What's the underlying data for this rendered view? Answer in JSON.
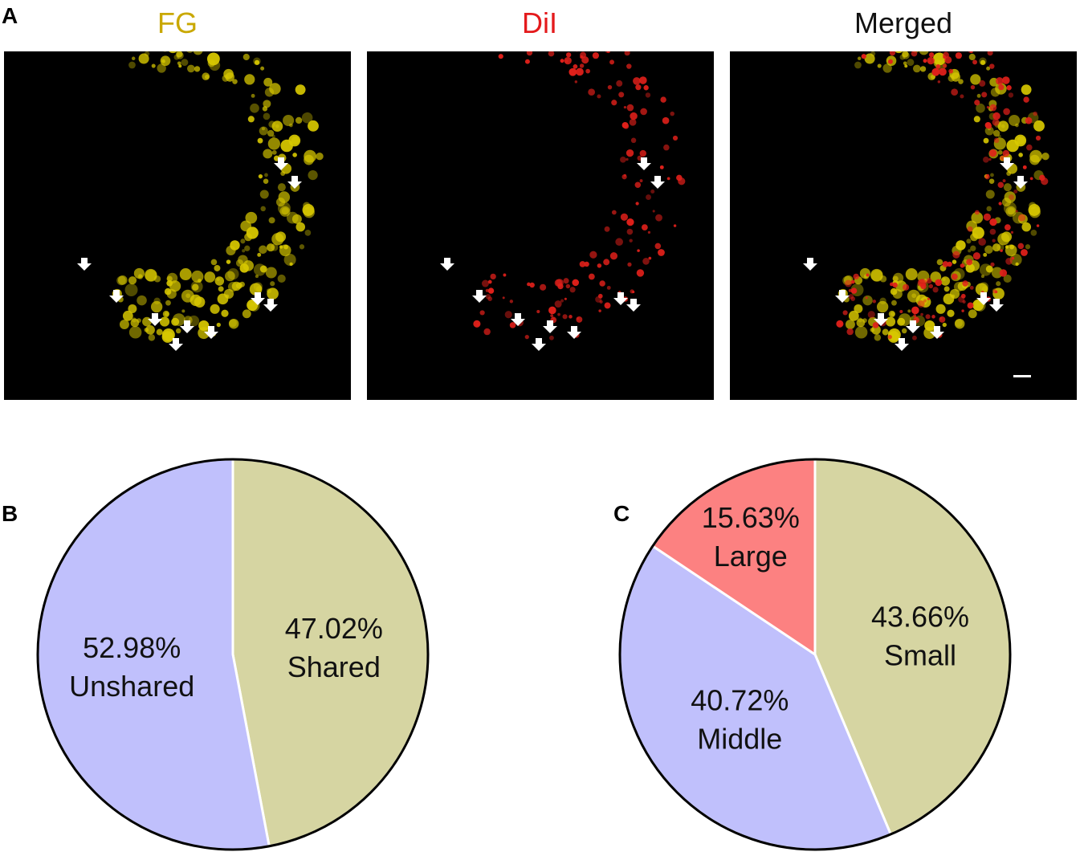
{
  "figure": {
    "panel_labels": {
      "a": "A",
      "b": "B",
      "c": "C"
    },
    "images": [
      {
        "title": "FG",
        "title_color": "#c9a800"
      },
      {
        "title": "DiI",
        "title_color": "#e41a1c"
      },
      {
        "title": "Merged",
        "title_color": "#111111"
      }
    ]
  },
  "colors": {
    "blue_slice": "#c0c0fc",
    "olive_slice": "#d6d5a2",
    "red_slice": "#fc8181",
    "fg_cells": "#d8c800",
    "dii_cells": "#e0201a"
  },
  "chart_data": [
    {
      "type": "pie",
      "panel": "B",
      "title": "",
      "slices": [
        {
          "label": "Shared",
          "value": 47.02,
          "pct_text": "47.02%",
          "color": "#d6d5a2"
        },
        {
          "label": "Unshared",
          "value": 52.98,
          "pct_text": "52.98%",
          "color": "#c0c0fc"
        }
      ]
    },
    {
      "type": "pie",
      "panel": "C",
      "title": "",
      "slices": [
        {
          "label": "Small",
          "value": 43.66,
          "pct_text": "43.66%",
          "color": "#d6d5a2"
        },
        {
          "label": "Middle",
          "value": 40.72,
          "pct_text": "40.72%",
          "color": "#c0c0fc"
        },
        {
          "label": "Large",
          "value": 15.63,
          "pct_text": "15.63%",
          "color": "#fc8181"
        }
      ]
    }
  ]
}
